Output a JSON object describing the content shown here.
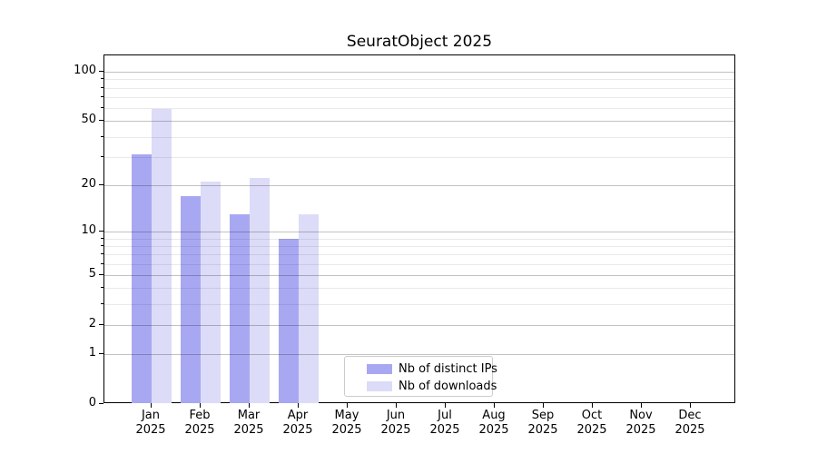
{
  "chart_data": {
    "type": "bar",
    "title": "SeuratObject 2025",
    "categories": [
      "Jan",
      "Feb",
      "Mar",
      "Apr",
      "May",
      "Jun",
      "Jul",
      "Aug",
      "Sep",
      "Oct",
      "Nov",
      "Dec"
    ],
    "year": "2025",
    "series": [
      {
        "name": "Nb of distinct IPs",
        "color": "#a8a8f2",
        "values": [
          31,
          17,
          13,
          9,
          0,
          0,
          0,
          0,
          0,
          0,
          0,
          0
        ]
      },
      {
        "name": "Nb of downloads",
        "color": "#dcdcf8",
        "values": [
          59,
          21,
          22,
          13,
          0,
          0,
          0,
          0,
          0,
          0,
          0,
          0
        ]
      }
    ],
    "y_scale": "log10(value+1)",
    "y_ticks_major": [
      0,
      1,
      2,
      5,
      10,
      20,
      50,
      100
    ],
    "y_ticks_minor": [
      3,
      4,
      6,
      7,
      8,
      9,
      30,
      40,
      60,
      70,
      80,
      90
    ],
    "ylim": [
      0,
      124
    ],
    "grid": "horizontal, drawn above bars",
    "legend_position": "bottom-center"
  },
  "colors": {
    "background": "#ffffff",
    "spine": "#000000",
    "grid_major": "#c3c3c3",
    "grid_minor": "#e9e9e9",
    "legend_border": "#cccccc",
    "text": "#000000"
  }
}
